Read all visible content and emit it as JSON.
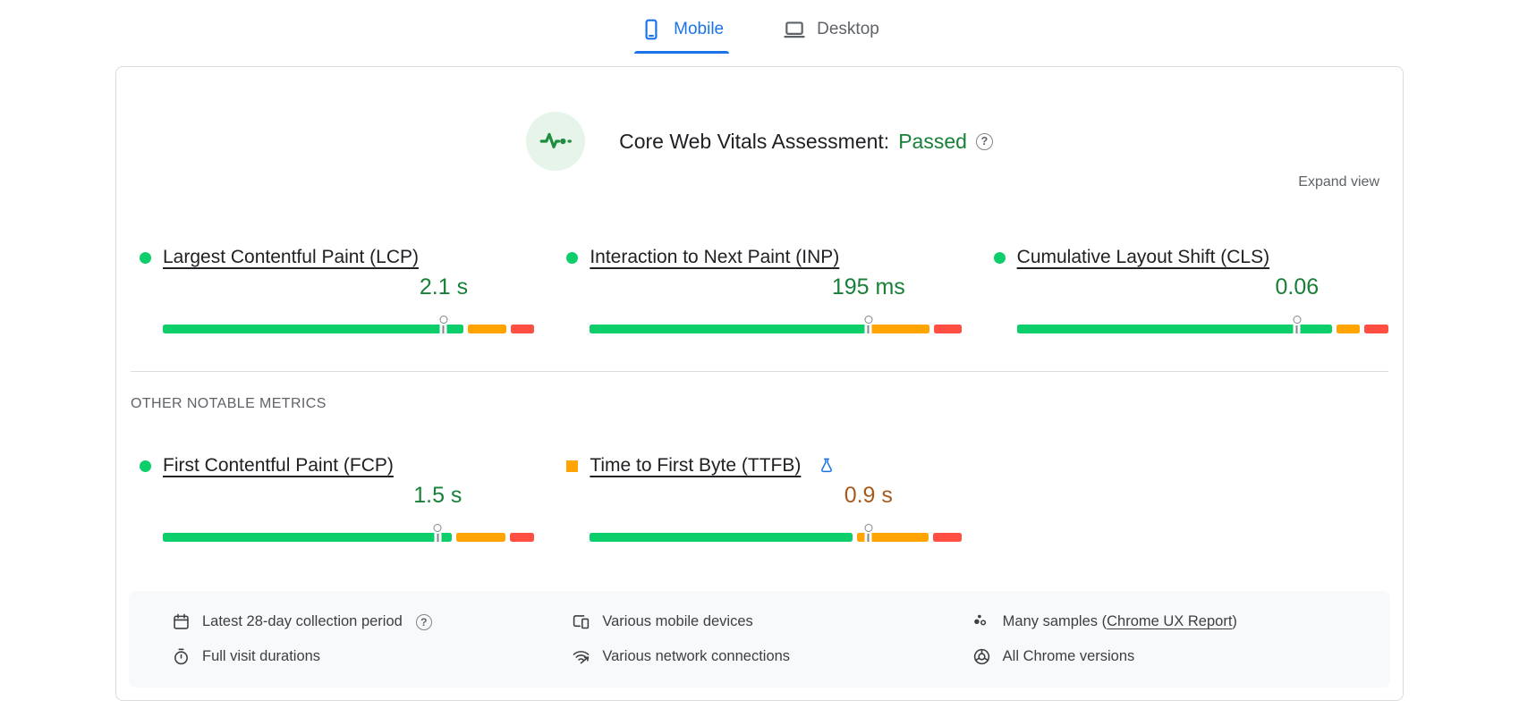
{
  "tabs": {
    "mobile": "Mobile",
    "desktop": "Desktop"
  },
  "assessment": {
    "title": "Core Web Vitals Assessment:",
    "status": "Passed",
    "expand_label": "Expand view",
    "help_glyph": "?"
  },
  "other_metrics_heading": "OTHER NOTABLE METRICS",
  "colors": {
    "accent_blue": "#1a73e8",
    "good_text": "#188038",
    "average_text": "#a55b1e",
    "bar_good": "#0cce6b",
    "bar_average": "#ffa400",
    "bar_poor": "#ff4e42"
  },
  "metrics": [
    {
      "id": "lcp",
      "label": "Largest Contentful Paint (LCP)",
      "value": "2.1 s",
      "rating": "good",
      "indicator": "circle",
      "marker_pct": 75.6,
      "segments": [
        81,
        10.5,
        6.3
      ]
    },
    {
      "id": "inp",
      "label": "Interaction to Next Paint (INP)",
      "value": "195 ms",
      "rating": "good",
      "indicator": "circle",
      "marker_pct": 75.0,
      "segments": [
        75,
        16,
        7.5
      ]
    },
    {
      "id": "cls",
      "label": "Cumulative Layout Shift (CLS)",
      "value": "0.06",
      "rating": "good",
      "indicator": "circle",
      "marker_pct": 75.4,
      "segments": [
        85,
        6.3,
        6.5
      ]
    },
    {
      "id": "fcp",
      "label": "First Contentful Paint (FCP)",
      "value": "1.5 s",
      "rating": "good",
      "indicator": "circle",
      "marker_pct": 74.0,
      "segments": [
        76.5,
        13,
        6.5
      ]
    },
    {
      "id": "ttfb",
      "label": "Time to First Byte (TTFB)",
      "value": "0.9 s",
      "rating": "average",
      "indicator": "square",
      "marker_pct": 75.0,
      "segments": [
        70,
        19,
        7.5
      ],
      "experimental": true
    }
  ],
  "environment": {
    "items": [
      {
        "icon": "calendar-icon",
        "label": "Latest 28-day collection period",
        "has_help": true,
        "help_glyph": "?"
      },
      {
        "icon": "devices-icon",
        "label": "Various mobile devices"
      },
      {
        "icon": "samples-icon",
        "label_prefix": "Many samples (",
        "link": "Chrome UX Report",
        "label_suffix": ")"
      },
      {
        "icon": "stopwatch-icon",
        "label": "Full visit durations"
      },
      {
        "icon": "network-icon",
        "label": "Various network connections"
      },
      {
        "icon": "chrome-icon",
        "label": "All Chrome versions"
      }
    ]
  }
}
